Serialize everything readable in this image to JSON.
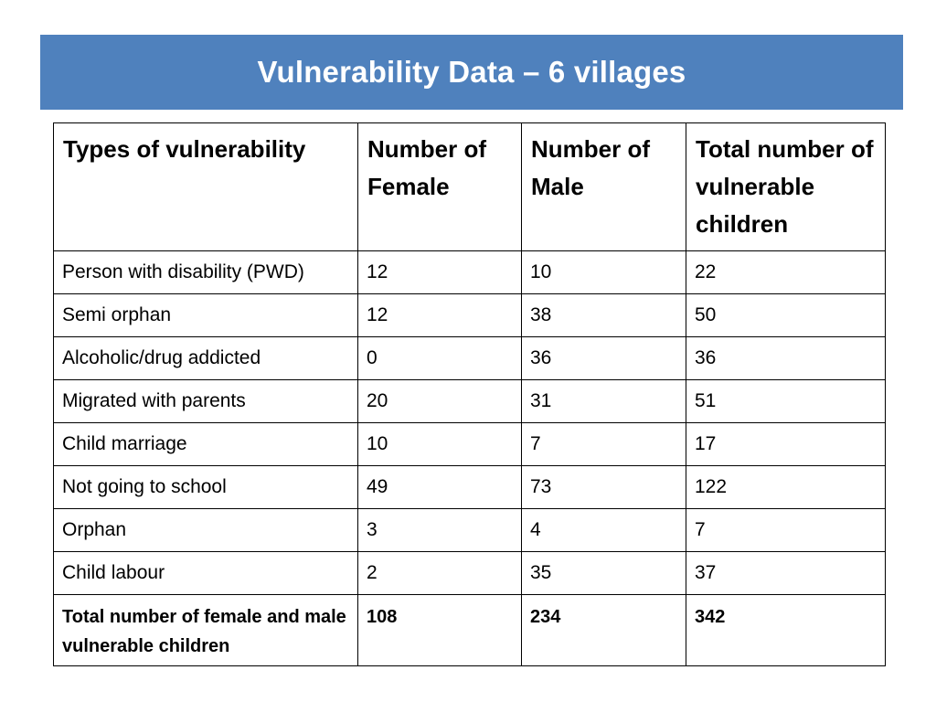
{
  "slide": {
    "title": "Vulnerability Data – 6 villages"
  },
  "table": {
    "headers": [
      "Types of vulnerability",
      "Number of Female",
      "Number of Male",
      "Total number of vulnerable children"
    ],
    "rows": [
      [
        "Person with disability (PWD)",
        "12",
        "10",
        "22"
      ],
      [
        "Semi orphan",
        "12",
        "38",
        "50"
      ],
      [
        "Alcoholic/drug addicted",
        "0",
        "36",
        "36"
      ],
      [
        "Migrated with parents",
        "20",
        "31",
        "51"
      ],
      [
        "Child marriage",
        "10",
        "7",
        "17"
      ],
      [
        "Not going to school",
        "49",
        "73",
        "122"
      ],
      [
        "Orphan",
        "3",
        "4",
        "7"
      ],
      [
        "Child labour",
        "2",
        "35",
        "37"
      ]
    ],
    "total_row": [
      "Total number of female and male vulnerable children",
      "108",
      "234",
      "342"
    ]
  },
  "colors": {
    "banner_background": "#4f81bd",
    "banner_text": "#ffffff",
    "table_border": "#000000"
  }
}
